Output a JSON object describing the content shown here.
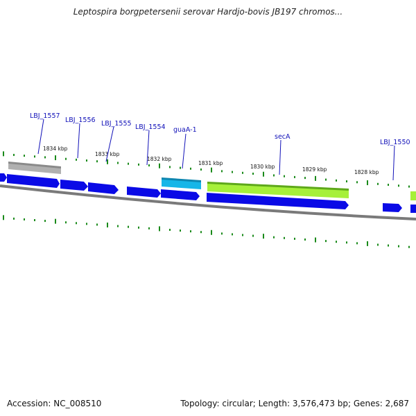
{
  "title": "Leptospira borgpetersenii serovar Hardjo-bovis JB197 chromos...",
  "accession": "Accession: NC_008510",
  "summary": "Topology: circular; Length: 3,576,473 bp; Genes: 2,687",
  "scale_labels": [
    "1834 kbp",
    "1833 kbp",
    "1832 kbp",
    "1831 kbp",
    "1830 kbp",
    "1829 kbp",
    "1828 kbp"
  ],
  "gene_labels": [
    "LBJ_1557",
    "LBJ_1556",
    "LBJ_1555",
    "LBJ_1554",
    "guaA-1",
    "secA",
    "LBJ_1550"
  ],
  "colors": {
    "backbone": "#7a7a7a",
    "cds": "#0a0ae6",
    "gc_ticks": "#1a8a1a",
    "label": "#1010b8",
    "pseudo": "#b0b0b0",
    "guaA": "#16b6e8",
    "secA": "#a6f03a"
  }
}
